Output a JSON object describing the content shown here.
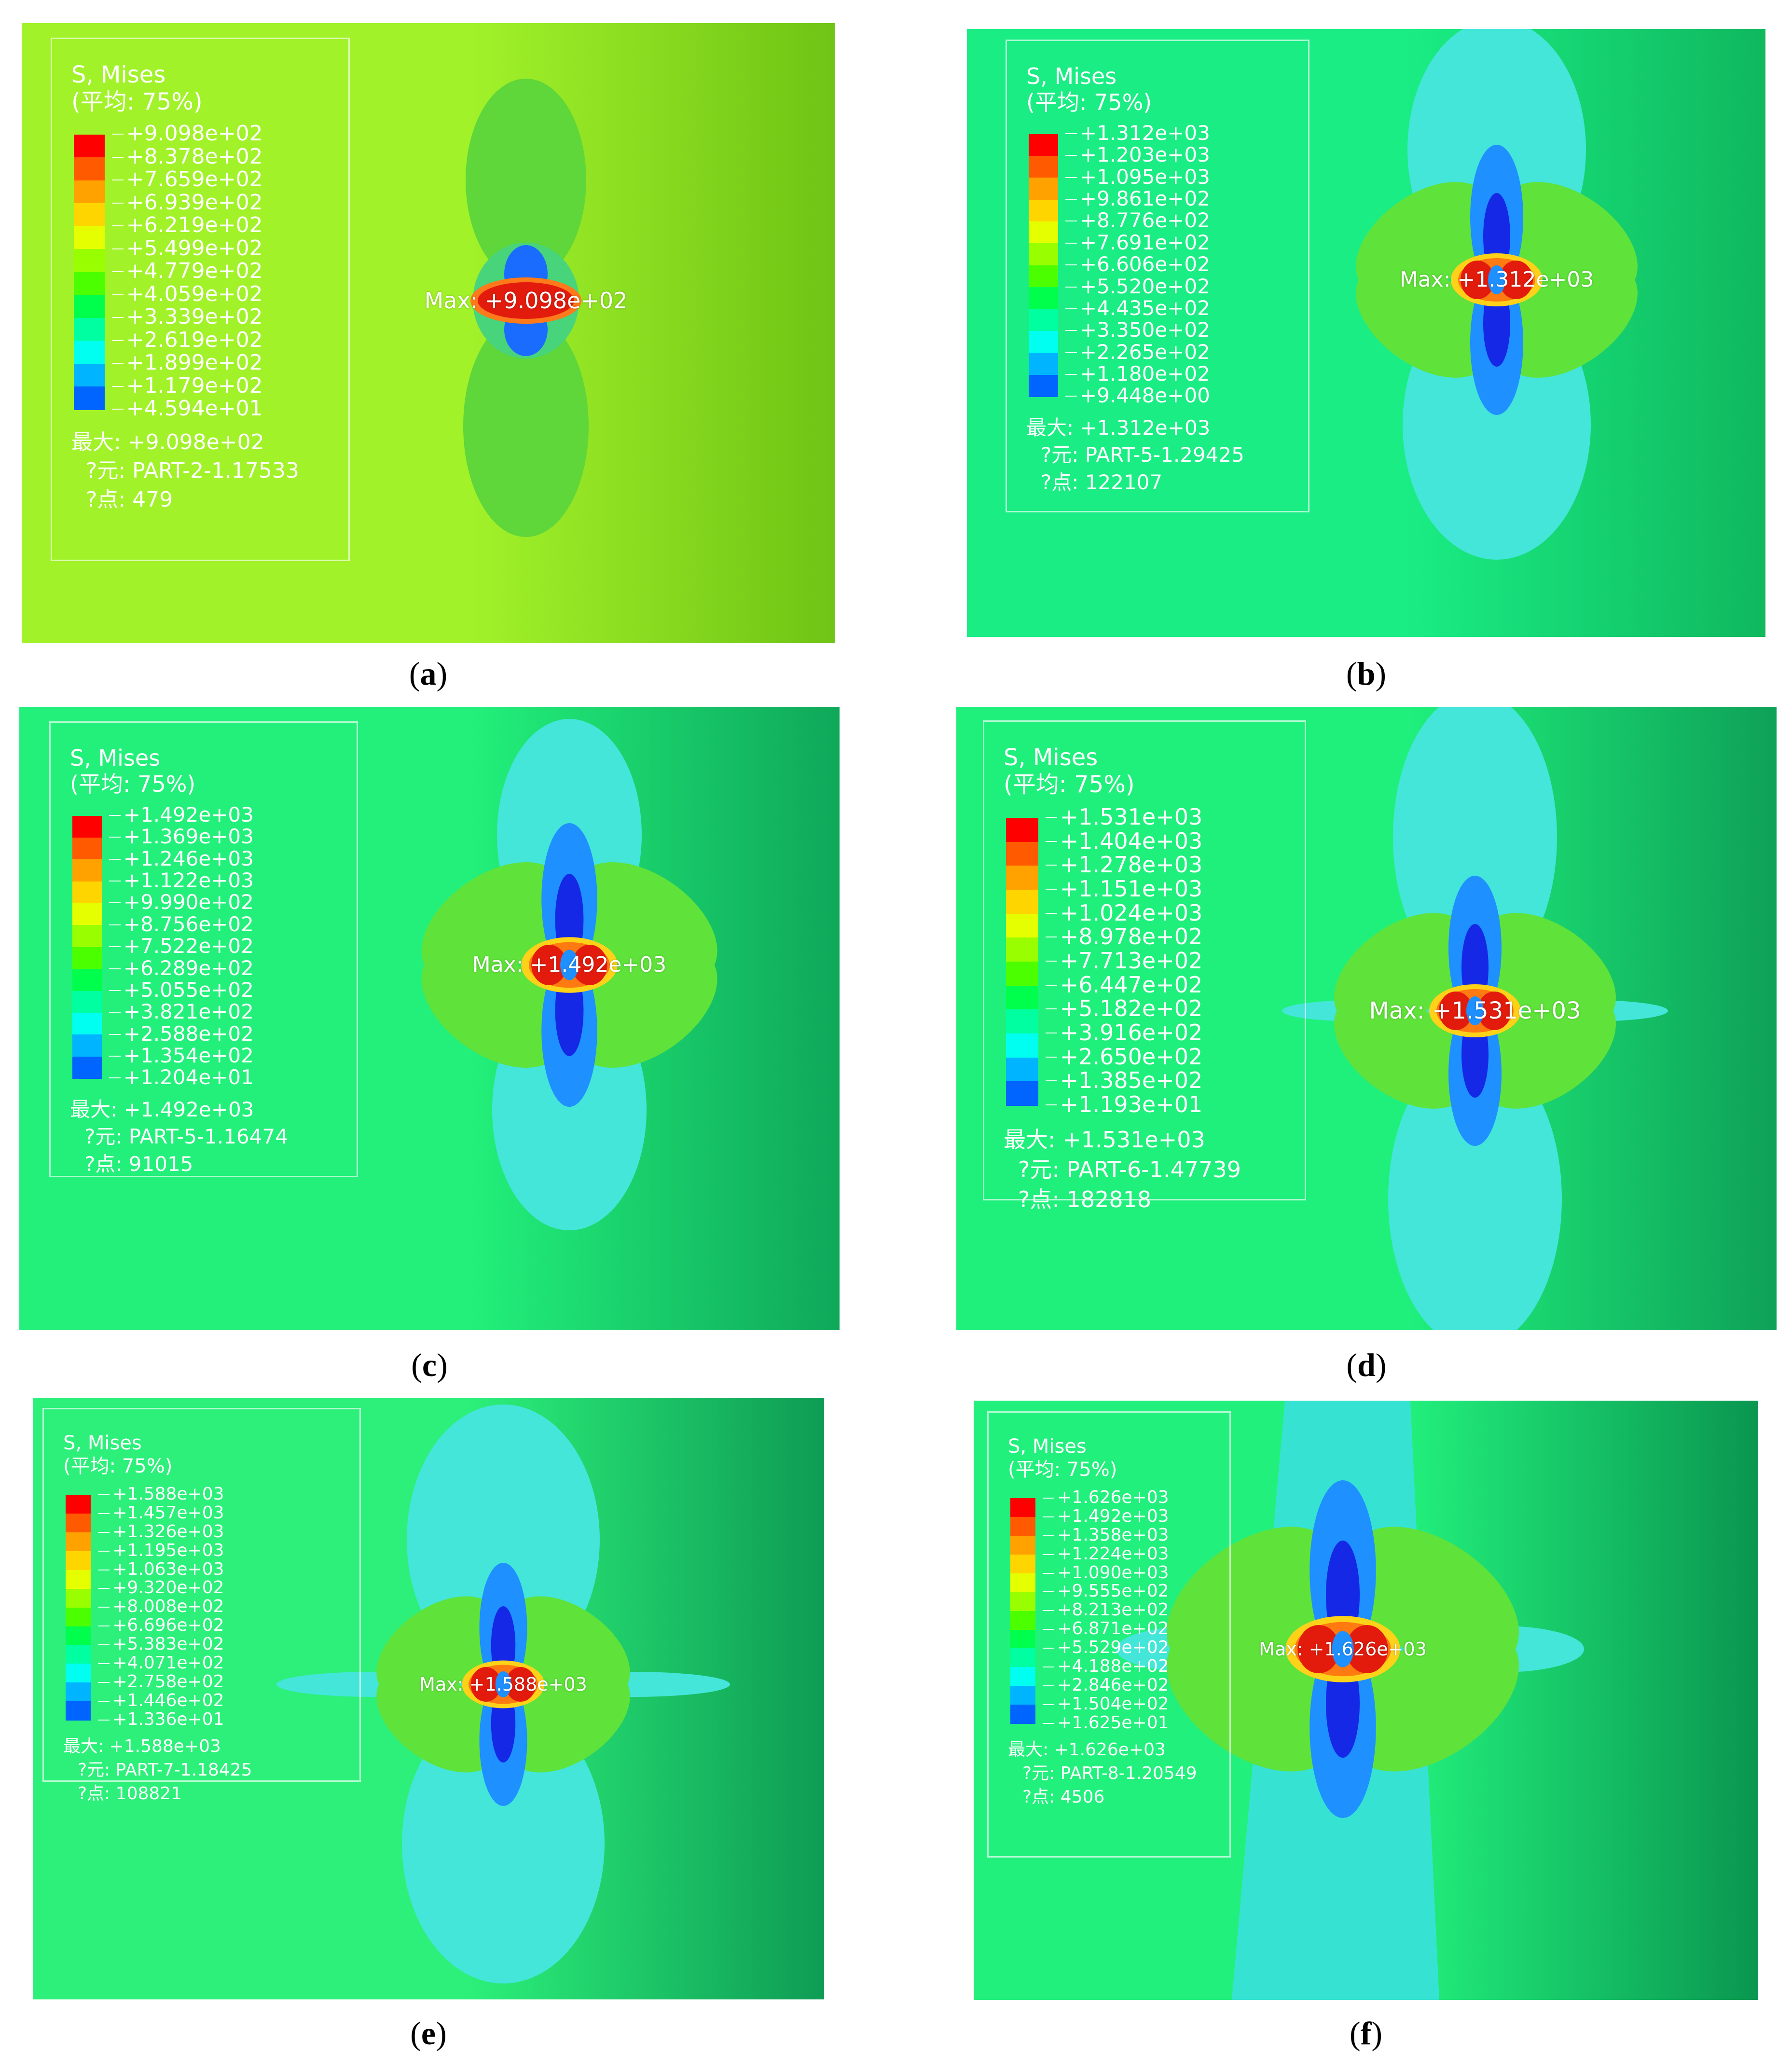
{
  "colors": {
    "legend_ramp": [
      "#ff0000",
      "#ff5a00",
      "#ffa200",
      "#ffd500",
      "#e6ff00",
      "#99ff00",
      "#4cff00",
      "#00ff4c",
      "#00ffa0",
      "#00fff0",
      "#00b4ff",
      "#0064ff",
      "#0000ff"
    ],
    "contour_red": "#e31b0c",
    "contour_blue": "#1a3cff",
    "contour_cyan": "#39e0d6",
    "contour_green": "#3ee63e",
    "contour_lime": "#8ce32a"
  },
  "panels": [
    {
      "id": "a",
      "caption": "a",
      "legend": {
        "title": "S, Mises",
        "subtitle": "(平均: 75%)",
        "ticks": [
          "+9.098e+02",
          "+8.378e+02",
          "+7.659e+02",
          "+6.939e+02",
          "+6.219e+02",
          "+5.499e+02",
          "+4.779e+02",
          "+4.059e+02",
          "+3.339e+02",
          "+2.619e+02",
          "+1.899e+02",
          "+1.179e+02",
          "+4.594e+01"
        ],
        "max_line": "最大: +9.098e+02",
        "element_line": "?元: PART-2-1.17533",
        "node_line": "?点: 479"
      },
      "max_label": "Max: +9.098e+02",
      "background": [
        "#a2f22a",
        "#6fc415"
      ],
      "style": "a"
    },
    {
      "id": "b",
      "caption": "b",
      "legend": {
        "title": "S, Mises",
        "subtitle": "(平均: 75%)",
        "ticks": [
          "+1.312e+03",
          "+1.203e+03",
          "+1.095e+03",
          "+9.861e+02",
          "+8.776e+02",
          "+7.691e+02",
          "+6.606e+02",
          "+5.520e+02",
          "+4.435e+02",
          "+3.350e+02",
          "+2.265e+02",
          "+1.180e+02",
          "+9.448e+00"
        ],
        "max_line": "最大: +1.312e+03",
        "element_line": "?元: PART-5-1.29425",
        "node_line": "?点: 122107"
      },
      "max_label": "Max: +1.312e+03",
      "background": [
        "#1aed84",
        "#10b85e"
      ],
      "style": "b"
    },
    {
      "id": "c",
      "caption": "c",
      "legend": {
        "title": "S, Mises",
        "subtitle": "(平均: 75%)",
        "ticks": [
          "+1.492e+03",
          "+1.369e+03",
          "+1.246e+03",
          "+1.122e+03",
          "+9.990e+02",
          "+8.756e+02",
          "+7.522e+02",
          "+6.289e+02",
          "+5.055e+02",
          "+3.821e+02",
          "+2.588e+02",
          "+1.354e+02",
          "+1.204e+01"
        ],
        "max_line": "最大: +1.492e+03",
        "element_line": "?元: PART-5-1.16474",
        "node_line": "?点: 91015"
      },
      "max_label": "Max: +1.492e+03",
      "background": [
        "#22f07a",
        "#0fa85a"
      ],
      "style": "c"
    },
    {
      "id": "d",
      "caption": "d",
      "legend": {
        "title": "S, Mises",
        "subtitle": "(平均: 75%)",
        "ticks": [
          "+1.531e+03",
          "+1.404e+03",
          "+1.278e+03",
          "+1.151e+03",
          "+1.024e+03",
          "+8.978e+02",
          "+7.713e+02",
          "+6.447e+02",
          "+5.182e+02",
          "+3.916e+02",
          "+2.650e+02",
          "+1.385e+02",
          "+1.193e+01"
        ],
        "max_line": "最大: +1.531e+03",
        "element_line": "?元: PART-6-1.47739",
        "node_line": "?点: 182818"
      },
      "max_label": "Max: +1.531e+03",
      "background": [
        "#1ff07c",
        "#0ea158"
      ],
      "style": "d"
    },
    {
      "id": "e",
      "caption": "e",
      "legend": {
        "title": "S, Mises",
        "subtitle": "(平均: 75%)",
        "ticks": [
          "+1.588e+03",
          "+1.457e+03",
          "+1.326e+03",
          "+1.195e+03",
          "+1.063e+03",
          "+9.320e+02",
          "+8.008e+02",
          "+6.696e+02",
          "+5.383e+02",
          "+4.071e+02",
          "+2.758e+02",
          "+1.446e+02",
          "+1.336e+01"
        ],
        "max_line": "最大: +1.588e+03",
        "element_line": "?元: PART-7-1.18425",
        "node_line": "?点: 108821"
      },
      "max_label": "Max: +1.588e+03",
      "background": [
        "#2cf07a",
        "#0e9c54"
      ],
      "style": "e"
    },
    {
      "id": "f",
      "caption": "f",
      "legend": {
        "title": "S, Mises",
        "subtitle": "(平均: 75%)",
        "ticks": [
          "+1.626e+03",
          "+1.492e+03",
          "+1.358e+03",
          "+1.224e+03",
          "+1.090e+03",
          "+9.555e+02",
          "+8.213e+02",
          "+6.871e+02",
          "+5.529e+02",
          "+4.188e+02",
          "+2.846e+02",
          "+1.504e+02",
          "+1.625e+01"
        ],
        "max_line": "最大: +1.626e+03",
        "element_line": "?元: PART-8-1.20549",
        "node_line": "?点: 4506"
      },
      "max_label": "Max: +1.626e+03",
      "background": [
        "#22f07c",
        "#0a9650"
      ],
      "style": "f"
    }
  ]
}
